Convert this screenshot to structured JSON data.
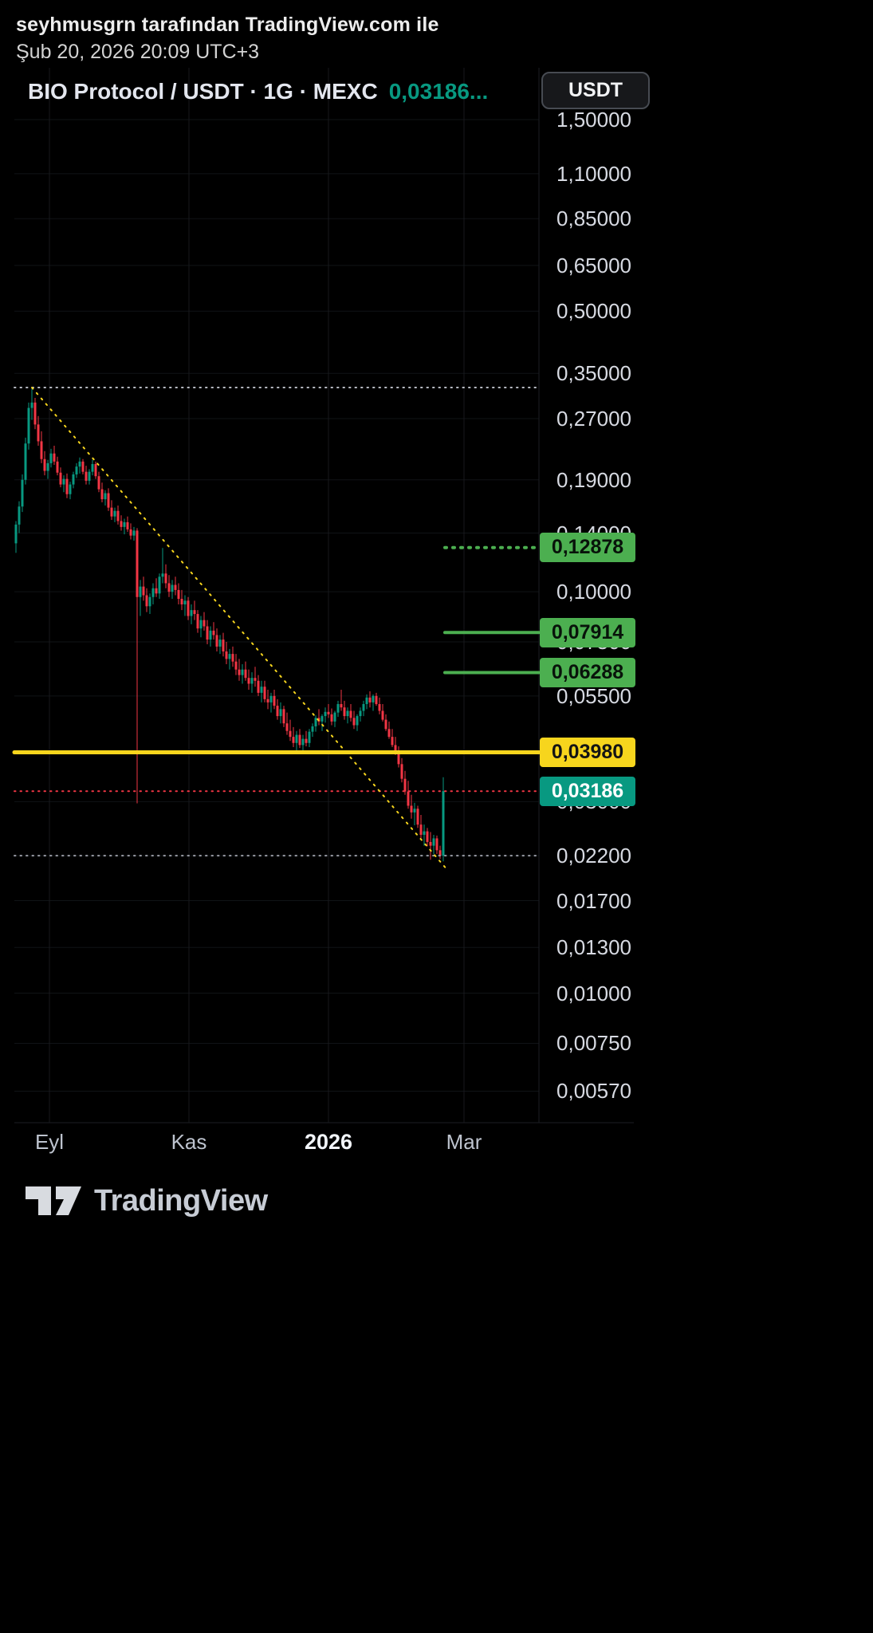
{
  "header": {
    "attribution": "seyhmusgrn tarafından TradingView.com ile",
    "datetime": "Şub 20, 2026 20:09 UTC+3"
  },
  "toolbar": {
    "currency_button": "USDT"
  },
  "chart": {
    "title": "BIO Protocol / USDT · 1G · MEXC",
    "last_price_text": "0,03186..."
  },
  "footer": {
    "brand": "TradingView"
  },
  "chart_data": {
    "type": "candlestick",
    "symbol": "BIO Protocol / USDT",
    "interval": "1G",
    "exchange": "MEXC",
    "last_price": 0.03186,
    "scale": "log",
    "up_color": "#089981",
    "down_color": "#f23645",
    "price_axis": {
      "side": "right",
      "range_top": 2.0194,
      "range_bottom": 0.004757,
      "ticks": [
        {
          "label": "1,50000",
          "price": 1.5
        },
        {
          "label": "1,10000",
          "price": 1.1
        },
        {
          "label": "0,85000",
          "price": 0.85
        },
        {
          "label": "0,65000",
          "price": 0.65
        },
        {
          "label": "0,50000",
          "price": 0.5
        },
        {
          "label": "0,35000",
          "price": 0.35
        },
        {
          "label": "0,27000",
          "price": 0.27
        },
        {
          "label": "0,19000",
          "price": 0.19
        },
        {
          "label": "0,14000",
          "price": 0.14
        },
        {
          "label": "0,10000",
          "price": 0.1
        },
        {
          "label": "0,07500",
          "price": 0.075
        },
        {
          "label": "0,05500",
          "price": 0.055
        },
        {
          "label": "0,04000",
          "price": 0.04
        },
        {
          "label": "0,03000",
          "price": 0.03
        },
        {
          "label": "0,02200",
          "price": 0.022
        },
        {
          "label": "0,01700",
          "price": 0.017
        },
        {
          "label": "0,01300",
          "price": 0.013
        },
        {
          "label": "0,01000",
          "price": 0.01
        },
        {
          "label": "0,00750",
          "price": 0.0075
        },
        {
          "label": "0,00570",
          "price": 0.0057
        }
      ]
    },
    "time_axis": {
      "ticks": [
        {
          "label": "Eyl",
          "index": 10.5,
          "bold": false
        },
        {
          "label": "Kas",
          "index": 54.25,
          "bold": false
        },
        {
          "label": "2026",
          "index": 98,
          "bold": true
        },
        {
          "label": "Mar",
          "index": 140.5,
          "bold": false
        }
      ]
    },
    "levels": [
      {
        "price": 0.3226,
        "style": "dotted",
        "color": "#b9bcc4",
        "width": 2,
        "span": "full"
      },
      {
        "price": 0.12878,
        "label": "0,12878",
        "style": "dotted",
        "color": "#4caf50",
        "width": 4,
        "span": "right",
        "badge": {
          "bg": "#4caf50",
          "fg": "#08130a"
        }
      },
      {
        "price": 0.07914,
        "label": "0,07914",
        "style": "solid",
        "color": "#4caf50",
        "width": 4,
        "span": "right",
        "badge": {
          "bg": "#4caf50",
          "fg": "#08130a"
        }
      },
      {
        "price": 0.06288,
        "label": "0,06288",
        "style": "solid",
        "color": "#4caf50",
        "width": 4,
        "span": "right",
        "badge": {
          "bg": "#4caf50",
          "fg": "#08130a"
        }
      },
      {
        "price": 0.0398,
        "label": "0,03980",
        "style": "solid",
        "color": "#f7d51d",
        "width": 5,
        "span": "full",
        "badge": {
          "bg": "#f7d51d",
          "fg": "#141414"
        }
      },
      {
        "price": 0.03186,
        "label": "0,03186",
        "style": "dotted",
        "color": "#f23645",
        "width": 2,
        "span": "full",
        "role": "last-price",
        "badge": {
          "bg": "#089981",
          "fg": "#ffffff"
        }
      },
      {
        "price": 0.022,
        "style": "dotted",
        "color": "#9a9da6",
        "width": 2,
        "span": "full"
      }
    ],
    "trendline": {
      "from": {
        "index": 5,
        "price": 0.3226
      },
      "to": {
        "index": 135,
        "price": 0.0204
      },
      "color": "#f7d51d",
      "style": "dotted",
      "width": 2
    },
    "candles": [
      [
        0.132,
        0.15,
        0.125,
        0.147
      ],
      [
        0.147,
        0.168,
        0.14,
        0.163
      ],
      [
        0.163,
        0.196,
        0.158,
        0.19
      ],
      [
        0.19,
        0.242,
        0.185,
        0.234
      ],
      [
        0.234,
        0.296,
        0.226,
        0.287
      ],
      [
        0.287,
        0.3226,
        0.268,
        0.296
      ],
      [
        0.296,
        0.304,
        0.254,
        0.261
      ],
      [
        0.261,
        0.274,
        0.231,
        0.237
      ],
      [
        0.237,
        0.251,
        0.209,
        0.214
      ],
      [
        0.214,
        0.224,
        0.195,
        0.2
      ],
      [
        0.2,
        0.213,
        0.191,
        0.209
      ],
      [
        0.209,
        0.227,
        0.204,
        0.221
      ],
      [
        0.221,
        0.231,
        0.207,
        0.211
      ],
      [
        0.211,
        0.217,
        0.195,
        0.198
      ],
      [
        0.198,
        0.204,
        0.182,
        0.185
      ],
      [
        0.185,
        0.195,
        0.177,
        0.191
      ],
      [
        0.191,
        0.197,
        0.171,
        0.175
      ],
      [
        0.175,
        0.188,
        0.17,
        0.185
      ],
      [
        0.185,
        0.199,
        0.181,
        0.196
      ],
      [
        0.196,
        0.209,
        0.192,
        0.205
      ],
      [
        0.205,
        0.216,
        0.197,
        0.211
      ],
      [
        0.211,
        0.214,
        0.196,
        0.199
      ],
      [
        0.199,
        0.206,
        0.185,
        0.189
      ],
      [
        0.189,
        0.202,
        0.185,
        0.199
      ],
      [
        0.199,
        0.213,
        0.195,
        0.208
      ],
      [
        0.208,
        0.211,
        0.191,
        0.194
      ],
      [
        0.194,
        0.199,
        0.177,
        0.18
      ],
      [
        0.18,
        0.187,
        0.167,
        0.17
      ],
      [
        0.17,
        0.179,
        0.164,
        0.176
      ],
      [
        0.176,
        0.181,
        0.159,
        0.162
      ],
      [
        0.162,
        0.169,
        0.151,
        0.154
      ],
      [
        0.154,
        0.162,
        0.149,
        0.159
      ],
      [
        0.159,
        0.164,
        0.147,
        0.15
      ],
      [
        0.15,
        0.155,
        0.142,
        0.145
      ],
      [
        0.145,
        0.152,
        0.139,
        0.149
      ],
      [
        0.149,
        0.154,
        0.141,
        0.143
      ],
      [
        0.143,
        0.148,
        0.135,
        0.138
      ],
      [
        0.138,
        0.145,
        0.134,
        0.142
      ],
      [
        0.142,
        0.144,
        0.0297,
        0.097
      ],
      [
        0.097,
        0.107,
        0.087,
        0.103
      ],
      [
        0.103,
        0.109,
        0.095,
        0.098
      ],
      [
        0.098,
        0.102,
        0.089,
        0.092
      ],
      [
        0.092,
        0.099,
        0.088,
        0.097
      ],
      [
        0.097,
        0.105,
        0.093,
        0.102
      ],
      [
        0.102,
        0.108,
        0.097,
        0.099
      ],
      [
        0.099,
        0.111,
        0.096,
        0.109
      ],
      [
        0.109,
        0.1285,
        0.105,
        0.111
      ],
      [
        0.111,
        0.117,
        0.102,
        0.105
      ],
      [
        0.105,
        0.11,
        0.097,
        0.1
      ],
      [
        0.1,
        0.107,
        0.096,
        0.104
      ],
      [
        0.104,
        0.109,
        0.098,
        0.101
      ],
      [
        0.101,
        0.105,
        0.093,
        0.096
      ],
      [
        0.096,
        0.101,
        0.09,
        0.093
      ],
      [
        0.093,
        0.098,
        0.087,
        0.095
      ],
      [
        0.095,
        0.097,
        0.085,
        0.087
      ],
      [
        0.087,
        0.093,
        0.083,
        0.09
      ],
      [
        0.09,
        0.095,
        0.085,
        0.088
      ],
      [
        0.088,
        0.09,
        0.079,
        0.081
      ],
      [
        0.081,
        0.087,
        0.077,
        0.085
      ],
      [
        0.085,
        0.089,
        0.08,
        0.082
      ],
      [
        0.082,
        0.085,
        0.074,
        0.076
      ],
      [
        0.076,
        0.082,
        0.073,
        0.08
      ],
      [
        0.08,
        0.084,
        0.076,
        0.078
      ],
      [
        0.078,
        0.081,
        0.071,
        0.073
      ],
      [
        0.073,
        0.078,
        0.07,
        0.076
      ],
      [
        0.076,
        0.079,
        0.069,
        0.071
      ],
      [
        0.071,
        0.075,
        0.066,
        0.068
      ],
      [
        0.068,
        0.072,
        0.064,
        0.07
      ],
      [
        0.07,
        0.073,
        0.065,
        0.067
      ],
      [
        0.067,
        0.07,
        0.062,
        0.064
      ],
      [
        0.064,
        0.068,
        0.06,
        0.062
      ],
      [
        0.062,
        0.066,
        0.059,
        0.064
      ],
      [
        0.064,
        0.067,
        0.06,
        0.061
      ],
      [
        0.061,
        0.064,
        0.057,
        0.059
      ],
      [
        0.059,
        0.063,
        0.056,
        0.061
      ],
      [
        0.061,
        0.065,
        0.058,
        0.06
      ],
      [
        0.06,
        0.062,
        0.055,
        0.056
      ],
      [
        0.056,
        0.06,
        0.053,
        0.058
      ],
      [
        0.058,
        0.06,
        0.053,
        0.054
      ],
      [
        0.054,
        0.057,
        0.051,
        0.053
      ],
      [
        0.053,
        0.056,
        0.05,
        0.055
      ],
      [
        0.055,
        0.057,
        0.051,
        0.052
      ],
      [
        0.052,
        0.054,
        0.048,
        0.049
      ],
      [
        0.049,
        0.053,
        0.047,
        0.051
      ],
      [
        0.051,
        0.052,
        0.046,
        0.047
      ],
      [
        0.047,
        0.05,
        0.044,
        0.045
      ],
      [
        0.045,
        0.048,
        0.0425,
        0.0435
      ],
      [
        0.0435,
        0.046,
        0.041,
        0.042
      ],
      [
        0.042,
        0.045,
        0.0402,
        0.044
      ],
      [
        0.044,
        0.0455,
        0.0408,
        0.0415
      ],
      [
        0.0415,
        0.044,
        0.0398,
        0.043
      ],
      [
        0.043,
        0.045,
        0.0412,
        0.042
      ],
      [
        0.042,
        0.0455,
        0.041,
        0.0448
      ],
      [
        0.0448,
        0.047,
        0.0435,
        0.0462
      ],
      [
        0.0462,
        0.0492,
        0.0448,
        0.0485
      ],
      [
        0.0485,
        0.051,
        0.0465,
        0.0475
      ],
      [
        0.0475,
        0.0495,
        0.045,
        0.049
      ],
      [
        0.049,
        0.0515,
        0.0472,
        0.0502
      ],
      [
        0.0502,
        0.0525,
        0.0485,
        0.0495
      ],
      [
        0.0495,
        0.0512,
        0.0465,
        0.0475
      ],
      [
        0.0475,
        0.0505,
        0.046,
        0.05
      ],
      [
        0.05,
        0.0535,
        0.0488,
        0.0525
      ],
      [
        0.0525,
        0.057,
        0.0505,
        0.0515
      ],
      [
        0.0515,
        0.0535,
        0.048,
        0.049
      ],
      [
        0.049,
        0.0515,
        0.047,
        0.0505
      ],
      [
        0.0505,
        0.0525,
        0.0475,
        0.0485
      ],
      [
        0.0485,
        0.0505,
        0.0455,
        0.0465
      ],
      [
        0.0465,
        0.0495,
        0.045,
        0.049
      ],
      [
        0.049,
        0.0515,
        0.0475,
        0.0505
      ],
      [
        0.0505,
        0.0535,
        0.049,
        0.0525
      ],
      [
        0.0525,
        0.0555,
        0.051,
        0.0545
      ],
      [
        0.0545,
        0.0565,
        0.0515,
        0.053
      ],
      [
        0.053,
        0.0555,
        0.0505,
        0.055
      ],
      [
        0.055,
        0.056,
        0.052,
        0.0525
      ],
      [
        0.0525,
        0.0545,
        0.0495,
        0.0505
      ],
      [
        0.0505,
        0.0525,
        0.0475,
        0.048
      ],
      [
        0.048,
        0.0495,
        0.045,
        0.0455
      ],
      [
        0.0455,
        0.0475,
        0.043,
        0.0435
      ],
      [
        0.0435,
        0.0455,
        0.041,
        0.0415
      ],
      [
        0.0415,
        0.0435,
        0.0392,
        0.0398
      ],
      [
        0.0398,
        0.0412,
        0.0365,
        0.0372
      ],
      [
        0.0372,
        0.0385,
        0.0335,
        0.0342
      ],
      [
        0.0342,
        0.0358,
        0.0312,
        0.0318
      ],
      [
        0.0318,
        0.0338,
        0.0288,
        0.0293
      ],
      [
        0.0293,
        0.0312,
        0.0272,
        0.0282
      ],
      [
        0.0282,
        0.0298,
        0.0262,
        0.0288
      ],
      [
        0.0288,
        0.0293,
        0.0258,
        0.0263
      ],
      [
        0.0263,
        0.0278,
        0.0243,
        0.0248
      ],
      [
        0.0248,
        0.0263,
        0.0233,
        0.0253
      ],
      [
        0.0253,
        0.0258,
        0.0232,
        0.0238
      ],
      [
        0.0238,
        0.0252,
        0.0215,
        0.0233
      ],
      [
        0.0233,
        0.0248,
        0.0222,
        0.0243
      ],
      [
        0.0243,
        0.0247,
        0.0222,
        0.0227
      ],
      [
        0.0227,
        0.0233,
        0.0216,
        0.022
      ],
      [
        0.022,
        0.0345,
        0.0213,
        0.03186
      ]
    ]
  }
}
